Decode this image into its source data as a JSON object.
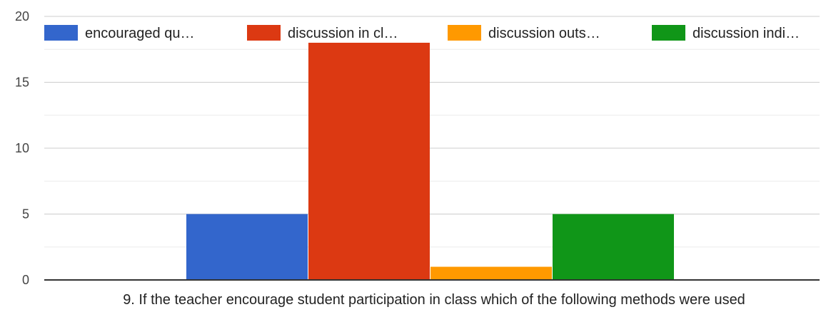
{
  "chart_data": {
    "type": "bar",
    "title": "",
    "xlabel": "9. If the teacher encourage student participation in class which of the following methods were used",
    "ylabel": "",
    "ylim": [
      0,
      20
    ],
    "yticks": [
      0,
      5,
      10,
      15,
      20
    ],
    "grid": true,
    "legend_position": "top",
    "categories": [
      "9. If the teacher encourage student participation in class which of the following methods were used"
    ],
    "series": [
      {
        "name": "encouraged qu…",
        "values": [
          5
        ],
        "color": "#3366cc"
      },
      {
        "name": "discussion in cl…",
        "values": [
          18
        ],
        "color": "#dc3912"
      },
      {
        "name": "discussion outs…",
        "values": [
          1
        ],
        "color": "#ff9900"
      },
      {
        "name": "discussion indi…",
        "values": [
          5
        ],
        "color": "#109618"
      }
    ]
  }
}
